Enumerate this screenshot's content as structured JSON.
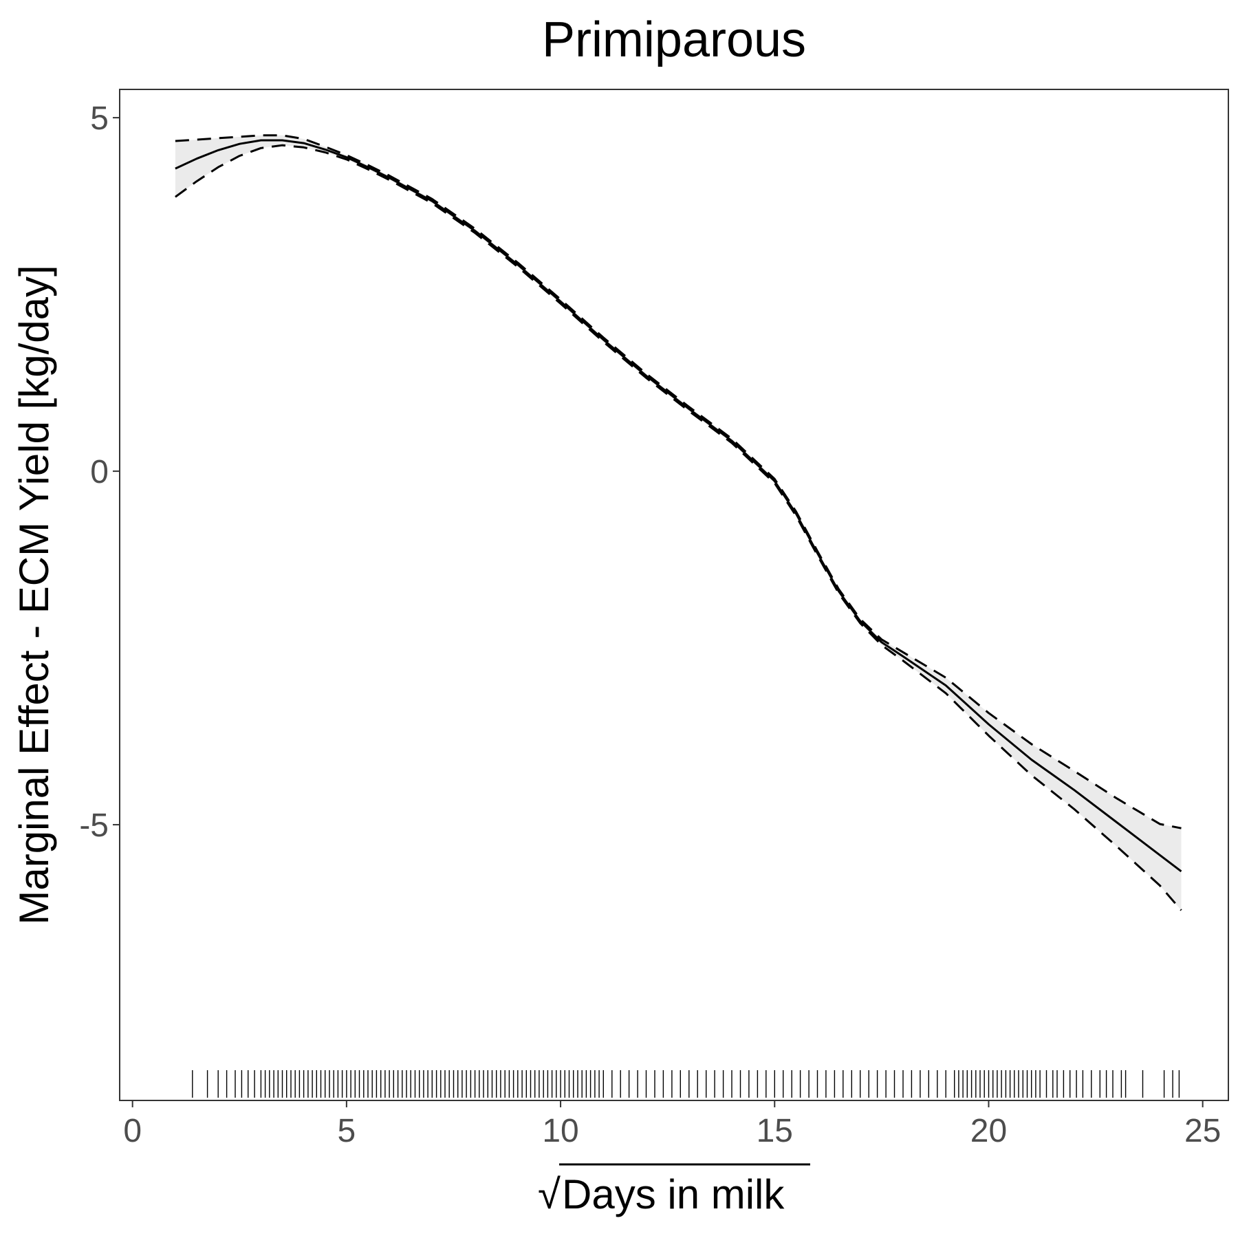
{
  "chart_data": {
    "type": "line",
    "title": "Primiparous",
    "xlabel": "Days in milk",
    "xlabel_prefix": "√",
    "ylabel": "Marginal Effect - ECM Yield [kg/day]",
    "xlim": [
      -0.3,
      25.6
    ],
    "ylim": [
      -8.9,
      5.4
    ],
    "x_ticks": [
      0,
      5,
      10,
      15,
      20,
      25
    ],
    "x_tick_labels": [
      "0",
      "5",
      "10",
      "15",
      "20",
      "25"
    ],
    "y_ticks": [
      -5,
      0,
      5
    ],
    "y_tick_labels": [
      "-5",
      "0",
      "5"
    ],
    "grid": false,
    "legend": "none",
    "series": [
      {
        "role": "estimate",
        "style": "solid",
        "x": [
          1.0,
          1.5,
          2.0,
          2.5,
          3.0,
          3.5,
          4.0,
          4.5,
          5.0,
          5.5,
          6.0,
          7.0,
          8.0,
          9.0,
          10.0,
          11.0,
          12.0,
          13.0,
          14.0,
          15.0,
          15.5,
          16.0,
          16.5,
          17.0,
          17.5,
          18.0,
          19.0,
          20.0,
          21.0,
          22.0,
          23.0,
          24.0,
          24.5
        ],
        "y": [
          4.28,
          4.42,
          4.54,
          4.63,
          4.68,
          4.68,
          4.64,
          4.55,
          4.44,
          4.3,
          4.15,
          3.82,
          3.4,
          2.92,
          2.4,
          1.86,
          1.35,
          0.88,
          0.43,
          -0.14,
          -0.6,
          -1.16,
          -1.7,
          -2.12,
          -2.42,
          -2.62,
          -3.03,
          -3.58,
          -4.08,
          -4.51,
          -4.97,
          -5.43,
          -5.66
        ]
      },
      {
        "role": "upper-bound",
        "style": "dashed",
        "x": [
          1.0,
          1.5,
          2.0,
          2.5,
          3.0,
          3.5,
          4.0,
          4.5,
          5.0,
          5.5,
          6.0,
          7.0,
          8.0,
          9.0,
          10.0,
          11.0,
          12.0,
          13.0,
          14.0,
          15.0,
          15.5,
          16.0,
          16.5,
          17.0,
          17.5,
          18.0,
          19.0,
          20.0,
          21.0,
          22.0,
          23.0,
          24.0,
          24.5
        ],
        "y": [
          4.67,
          4.69,
          4.71,
          4.73,
          4.75,
          4.75,
          4.7,
          4.59,
          4.47,
          4.33,
          4.18,
          3.85,
          3.43,
          2.95,
          2.43,
          1.89,
          1.38,
          0.91,
          0.46,
          -0.11,
          -0.57,
          -1.13,
          -1.67,
          -2.09,
          -2.38,
          -2.56,
          -2.92,
          -3.42,
          -3.86,
          -4.24,
          -4.63,
          -4.99,
          -5.05
        ]
      },
      {
        "role": "lower-bound",
        "style": "dashed",
        "x": [
          1.0,
          1.5,
          2.0,
          2.5,
          3.0,
          3.5,
          4.0,
          4.5,
          5.0,
          5.5,
          6.0,
          7.0,
          8.0,
          9.0,
          10.0,
          11.0,
          12.0,
          13.0,
          14.0,
          15.0,
          15.5,
          16.0,
          16.5,
          17.0,
          17.5,
          18.0,
          19.0,
          20.0,
          21.0,
          22.0,
          23.0,
          24.0,
          24.5
        ],
        "y": [
          3.88,
          4.1,
          4.3,
          4.46,
          4.57,
          4.61,
          4.58,
          4.51,
          4.41,
          4.27,
          4.12,
          3.79,
          3.37,
          2.89,
          2.37,
          1.83,
          1.32,
          0.85,
          0.4,
          -0.17,
          -0.63,
          -1.19,
          -1.73,
          -2.15,
          -2.46,
          -2.68,
          -3.14,
          -3.74,
          -4.3,
          -4.78,
          -5.31,
          -5.86,
          -6.21
        ]
      }
    ],
    "rug_x": [
      1.4,
      1.75,
      2.0,
      2.2,
      2.4,
      2.55,
      2.7,
      2.85,
      3.0,
      3.1,
      3.2,
      3.3,
      3.4,
      3.5,
      3.6,
      3.7,
      3.8,
      3.9,
      4.0,
      4.1,
      4.2,
      4.3,
      4.4,
      4.5,
      4.6,
      4.7,
      4.8,
      4.9,
      5.0,
      5.1,
      5.2,
      5.3,
      5.4,
      5.5,
      5.6,
      5.7,
      5.8,
      5.9,
      6.0,
      6.1,
      6.2,
      6.3,
      6.4,
      6.5,
      6.6,
      6.7,
      6.8,
      6.9,
      7.0,
      7.1,
      7.2,
      7.3,
      7.4,
      7.5,
      7.6,
      7.7,
      7.8,
      7.9,
      8.0,
      8.1,
      8.2,
      8.3,
      8.4,
      8.5,
      8.6,
      8.7,
      8.8,
      8.9,
      9.0,
      9.1,
      9.2,
      9.3,
      9.4,
      9.5,
      9.6,
      9.7,
      9.8,
      9.9,
      10.0,
      10.1,
      10.2,
      10.3,
      10.4,
      10.5,
      10.6,
      10.7,
      10.8,
      10.9,
      11.0,
      11.2,
      11.4,
      11.6,
      11.8,
      12.0,
      12.2,
      12.4,
      12.6,
      12.8,
      13.0,
      13.2,
      13.4,
      13.6,
      13.8,
      14.0,
      14.2,
      14.4,
      14.6,
      14.8,
      15.0,
      15.2,
      15.4,
      15.6,
      15.8,
      16.0,
      16.2,
      16.4,
      16.6,
      16.8,
      17.0,
      17.2,
      17.4,
      17.6,
      17.8,
      18.0,
      18.2,
      18.4,
      18.6,
      18.8,
      19.0,
      19.2,
      19.3,
      19.4,
      19.5,
      19.6,
      19.7,
      19.8,
      19.9,
      20.0,
      20.1,
      20.2,
      20.3,
      20.4,
      20.5,
      20.6,
      20.7,
      20.8,
      20.9,
      21.0,
      21.1,
      21.2,
      21.35,
      21.5,
      21.6,
      21.75,
      21.9,
      22.05,
      22.2,
      22.4,
      22.6,
      22.75,
      22.9,
      23.1,
      23.2,
      23.6,
      24.1,
      24.3,
      24.45
    ]
  }
}
